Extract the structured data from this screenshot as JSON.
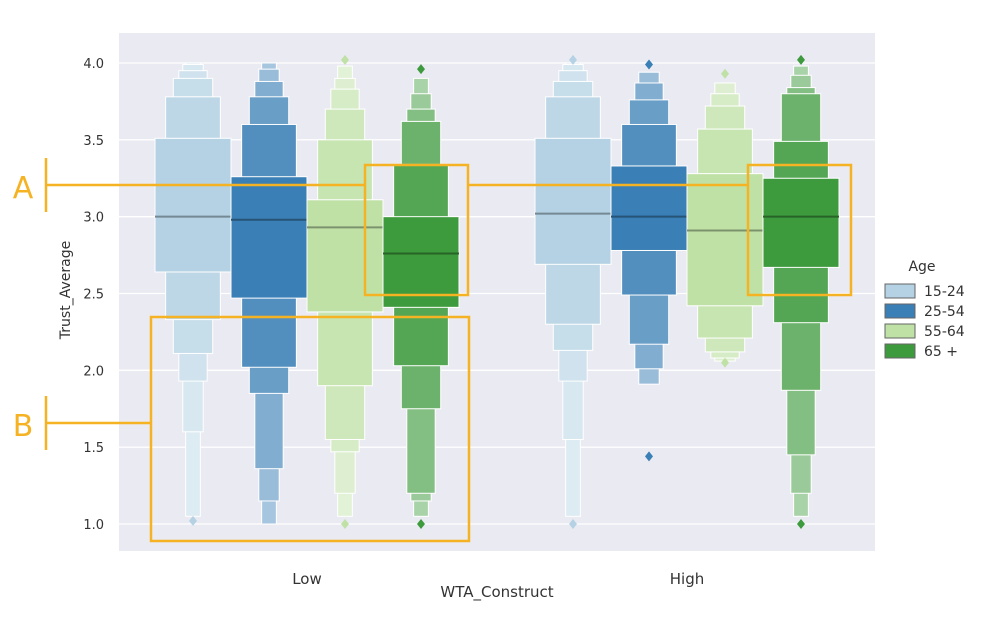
{
  "chart_data": {
    "type": "boxen",
    "xlabel": "WTA_Construct",
    "ylabel": "Trust_Average",
    "ylim": [
      0.9,
      4.1
    ],
    "yticks": [
      1.0,
      1.5,
      2.0,
      2.5,
      3.0,
      3.5,
      4.0
    ],
    "ytick_labels": [
      "1.0",
      "1.5",
      "2.0",
      "2.5",
      "3.0",
      "3.5",
      "4.0"
    ],
    "categories": [
      "Low",
      "High"
    ],
    "grid": true,
    "background": "#eaeaf2",
    "legend": {
      "title": "Age",
      "placement": "right",
      "entries": [
        "15-24",
        "25-54",
        "55-64",
        "65 +"
      ]
    },
    "series": [
      {
        "name": "15-24",
        "color": "#b4d2e3",
        "boxes": [
          {
            "category": "Low",
            "median": 3.0,
            "levels": [
              [
                2.64,
                3.51
              ],
              [
                2.33,
                3.78
              ],
              [
                2.11,
                3.9
              ],
              [
                1.93,
                3.95
              ],
              [
                1.6,
                3.99
              ],
              [
                1.05,
                4.0
              ]
            ],
            "outliers": [
              1.02
            ]
          },
          {
            "category": "High",
            "median": 3.02,
            "levels": [
              [
                2.69,
                3.51
              ],
              [
                2.3,
                3.78
              ],
              [
                2.13,
                3.88
              ],
              [
                1.93,
                3.95
              ],
              [
                1.55,
                3.99
              ],
              [
                1.05,
                4.0
              ]
            ],
            "outliers": [
              1.0,
              4.02
            ]
          }
        ]
      },
      {
        "name": "25-54",
        "color": "#3a7fb5",
        "boxes": [
          {
            "category": "Low",
            "median": 2.98,
            "levels": [
              [
                2.47,
                3.26
              ],
              [
                2.02,
                3.6
              ],
              [
                1.85,
                3.78
              ],
              [
                1.36,
                3.88
              ],
              [
                1.15,
                3.96
              ],
              [
                1.0,
                4.0
              ]
            ],
            "outliers": []
          },
          {
            "category": "High",
            "median": 3.0,
            "levels": [
              [
                2.78,
                3.33
              ],
              [
                2.49,
                3.6
              ],
              [
                2.17,
                3.76
              ],
              [
                2.01,
                3.87
              ],
              [
                1.91,
                3.94
              ]
            ],
            "outliers": [
              1.44,
              3.99
            ]
          }
        ]
      },
      {
        "name": "55-64",
        "color": "#bfe1a6",
        "boxes": [
          {
            "category": "Low",
            "median": 2.93,
            "levels": [
              [
                2.38,
                3.11
              ],
              [
                1.9,
                3.5
              ],
              [
                1.55,
                3.7
              ],
              [
                1.47,
                3.83
              ],
              [
                1.2,
                3.9
              ],
              [
                1.05,
                3.98
              ]
            ],
            "outliers": [
              1.0,
              4.02
            ]
          },
          {
            "category": "High",
            "median": 2.91,
            "levels": [
              [
                2.42,
                3.28
              ],
              [
                2.21,
                3.57
              ],
              [
                2.12,
                3.72
              ],
              [
                2.08,
                3.8
              ],
              [
                2.06,
                3.87
              ]
            ],
            "outliers": [
              2.05,
              3.93
            ]
          }
        ]
      },
      {
        "name": "65 +",
        "color": "#3d9a3d",
        "boxes": [
          {
            "category": "Low",
            "median": 2.76,
            "levels": [
              [
                2.41,
                3.0
              ],
              [
                2.03,
                3.34
              ],
              [
                1.75,
                3.62
              ],
              [
                1.2,
                3.7
              ],
              [
                1.15,
                3.8
              ],
              [
                1.05,
                3.9
              ]
            ],
            "outliers": [
              1.0,
              3.96
            ]
          },
          {
            "category": "High",
            "median": 3.0,
            "levels": [
              [
                2.67,
                3.25
              ],
              [
                2.31,
                3.49
              ],
              [
                1.87,
                3.8
              ],
              [
                1.45,
                3.84
              ],
              [
                1.2,
                3.92
              ],
              [
                1.05,
                3.98
              ]
            ],
            "outliers": [
              1.0,
              4.02
            ]
          }
        ]
      }
    ]
  },
  "annotations": [
    {
      "label": "A",
      "color": "#f5b323",
      "boxes": [
        {
          "category": "Low",
          "series": "65 +",
          "y_range": [
            2.48,
            3.33
          ]
        },
        {
          "category": "High",
          "series": "65 +",
          "y_range": [
            2.48,
            3.33
          ]
        }
      ],
      "leader_y": 3.2
    },
    {
      "label": "B",
      "color": "#f5b323",
      "boxes": [
        {
          "category": "Low",
          "series_span": [
            "15-24",
            "65 +"
          ],
          "y_range": [
            0.9,
            2.35
          ]
        }
      ],
      "leader_y": 1.67
    }
  ]
}
